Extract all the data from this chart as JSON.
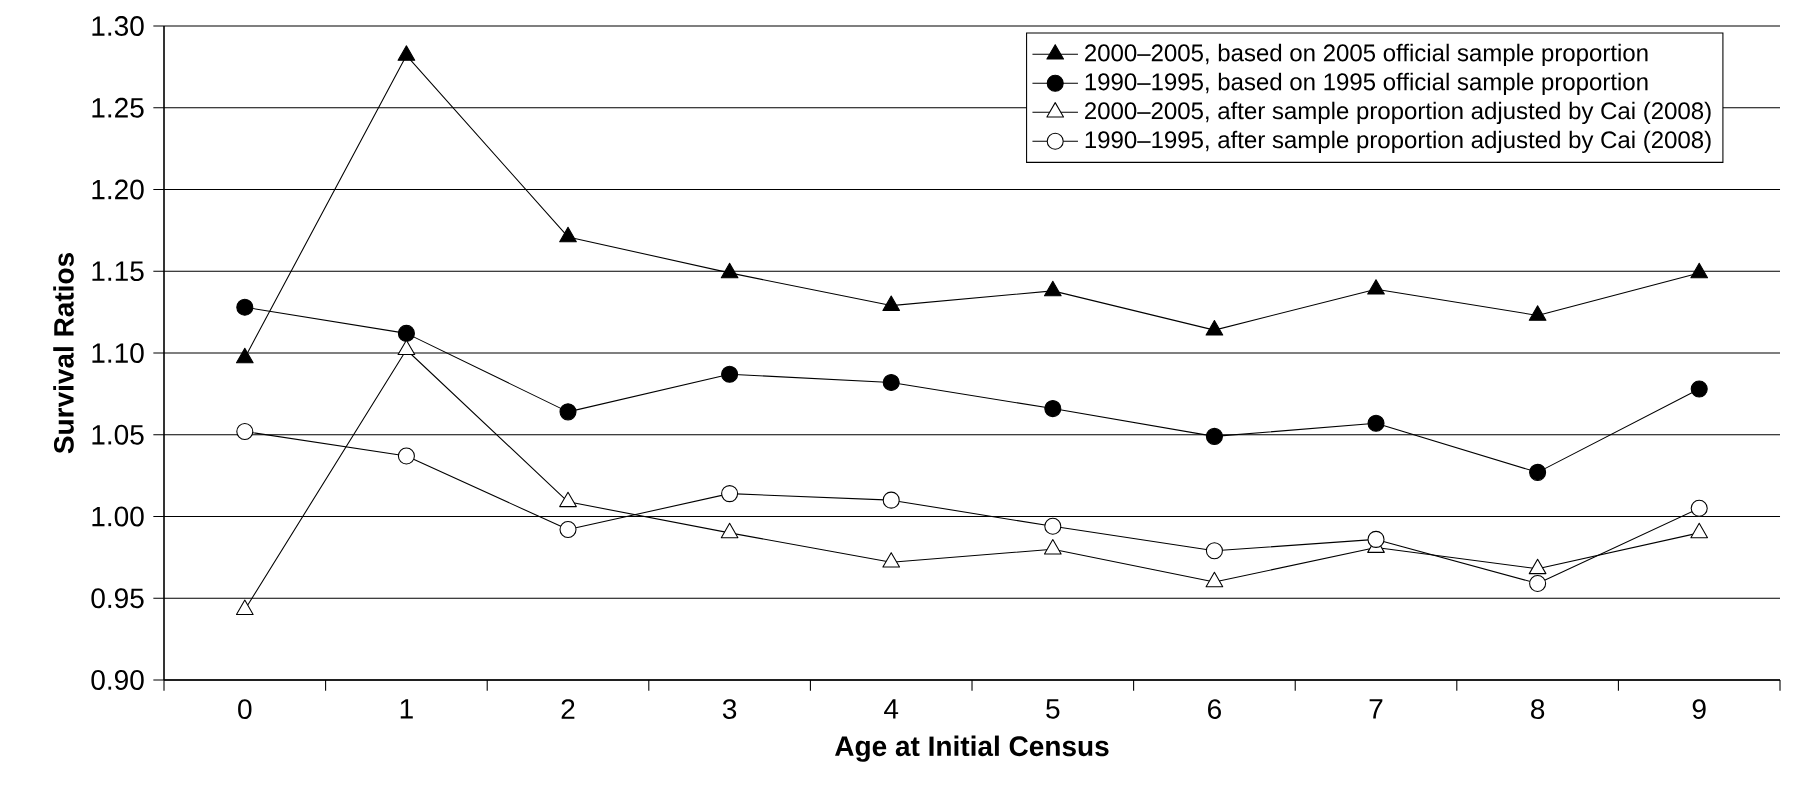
{
  "chart_data": {
    "type": "line",
    "xlabel": "Age at Initial Census",
    "ylabel": "Survival Ratios",
    "categories": [
      "0",
      "1",
      "2",
      "3",
      "4",
      "5",
      "6",
      "7",
      "8",
      "9"
    ],
    "ylim": [
      0.9,
      1.3
    ],
    "yticks": [
      {
        "value": 0.9,
        "label": "0.90"
      },
      {
        "value": 0.95,
        "label": "0.95"
      },
      {
        "value": 1.0,
        "label": "1.00"
      },
      {
        "value": 1.05,
        "label": "1.05"
      },
      {
        "value": 1.1,
        "label": "1.10"
      },
      {
        "value": 1.15,
        "label": "1.15"
      },
      {
        "value": 1.2,
        "label": "1.20"
      },
      {
        "value": 1.25,
        "label": "1.25"
      },
      {
        "value": 1.3,
        "label": "1.30"
      }
    ],
    "grid": "y",
    "legend": "top right",
    "line_style": "solid",
    "series": [
      {
        "name": "2000–2005, based on 2005 official sample proportion",
        "color": "#000000",
        "marker": "triangle",
        "values": [
          1.097,
          1.282,
          1.171,
          1.149,
          1.129,
          1.138,
          1.114,
          1.139,
          1.123,
          1.149
        ]
      },
      {
        "name": "1990–1995, based on 1995 official sample proportion",
        "color": "#000000",
        "marker": "circle",
        "values": [
          1.128,
          1.112,
          1.064,
          1.087,
          1.082,
          1.066,
          1.049,
          1.057,
          1.027,
          1.078
        ]
      },
      {
        "name": "2000–2005, after sample proportion adjusted by Cai (2008)",
        "color": "#000000",
        "marker": "triangle",
        "values": [
          0.943,
          1.102,
          1.009,
          0.99,
          0.972,
          0.98,
          0.96,
          0.981,
          0.968,
          0.99
        ]
      },
      {
        "name": "1990–1995, after sample proportion adjusted by Cai (2008)",
        "color": "#000000",
        "marker": "circle",
        "values": [
          1.052,
          1.037,
          0.992,
          1.014,
          1.01,
          0.994,
          0.979,
          0.986,
          0.959,
          1.005
        ]
      }
    ]
  }
}
